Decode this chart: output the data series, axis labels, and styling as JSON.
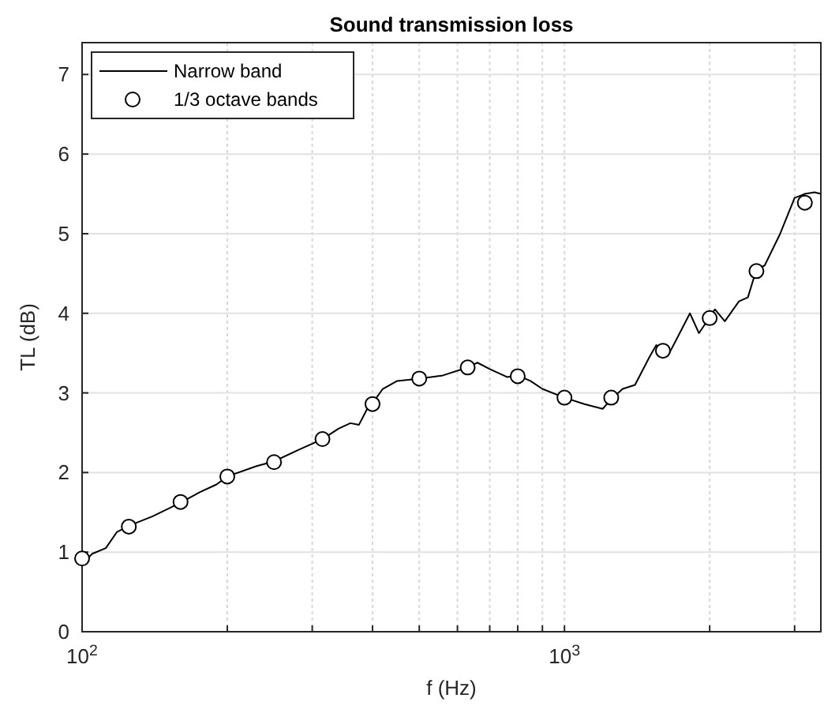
{
  "chart_data": {
    "type": "line",
    "title": "Sound transmission loss",
    "xlabel": "f (Hz)",
    "ylabel": "TL (dB)",
    "log": "x",
    "xlim": [
      100,
      3400
    ],
    "ylim": [
      0,
      7.4
    ],
    "xticks": [
      {
        "value": 100,
        "label": "10$^{2}$"
      },
      {
        "value": 200,
        "label": null
      },
      {
        "value": 300,
        "label": null
      },
      {
        "value": 400,
        "label": null
      },
      {
        "value": 500,
        "label": null
      },
      {
        "value": 600,
        "label": null
      },
      {
        "value": 700,
        "label": null
      },
      {
        "value": 800,
        "label": null
      },
      {
        "value": 900,
        "label": null
      },
      {
        "value": 1000,
        "label": "10$^{3}$"
      },
      {
        "value": 2000,
        "label": null
      },
      {
        "value": 3000,
        "label": null
      }
    ],
    "yticks": [
      0,
      1,
      2,
      3,
      4,
      5,
      6,
      7
    ],
    "grid": true,
    "legend": "top left",
    "series": [
      {
        "name": "Narrow band",
        "color": "#000000",
        "marker": "none",
        "x": [
          100,
          105,
          112,
          118,
          125,
          140,
          160,
          175,
          190,
          200,
          230,
          250,
          280,
          315,
          340,
          360,
          375,
          390,
          400,
          420,
          450,
          500,
          560,
          630,
          660,
          700,
          760,
          800,
          850,
          900,
          1000,
          1100,
          1200,
          1250,
          1320,
          1400,
          1500,
          1550,
          1650,
          1750,
          1820,
          1900,
          2000,
          2050,
          2150,
          2300,
          2400,
          2500,
          2600,
          2800,
          3000,
          3150,
          3300,
          3400
        ],
        "values": [
          0.85,
          0.98,
          1.05,
          1.25,
          1.33,
          1.45,
          1.62,
          1.75,
          1.85,
          1.95,
          2.08,
          2.14,
          2.28,
          2.42,
          2.55,
          2.62,
          2.6,
          2.8,
          2.87,
          3.05,
          3.15,
          3.18,
          3.22,
          3.32,
          3.38,
          3.3,
          3.2,
          3.22,
          3.15,
          3.05,
          2.94,
          2.86,
          2.8,
          2.92,
          3.05,
          3.1,
          3.45,
          3.6,
          3.5,
          3.8,
          4.0,
          3.75,
          3.95,
          4.05,
          3.9,
          4.15,
          4.2,
          4.55,
          4.6,
          5.0,
          5.45,
          5.5,
          5.52,
          5.5
        ]
      },
      {
        "name": "1/3 octave bands",
        "type": "scatter",
        "color": "#000000",
        "marker": "circle",
        "x": [
          100,
          125,
          160,
          200,
          250,
          315,
          400,
          500,
          630,
          800,
          1000,
          1250,
          1600,
          2000,
          2500,
          3150
        ],
        "values": [
          0.92,
          1.32,
          1.63,
          1.95,
          2.13,
          2.42,
          2.86,
          3.18,
          3.32,
          3.21,
          2.94,
          2.94,
          3.53,
          3.94,
          4.53,
          5.39
        ]
      }
    ]
  }
}
